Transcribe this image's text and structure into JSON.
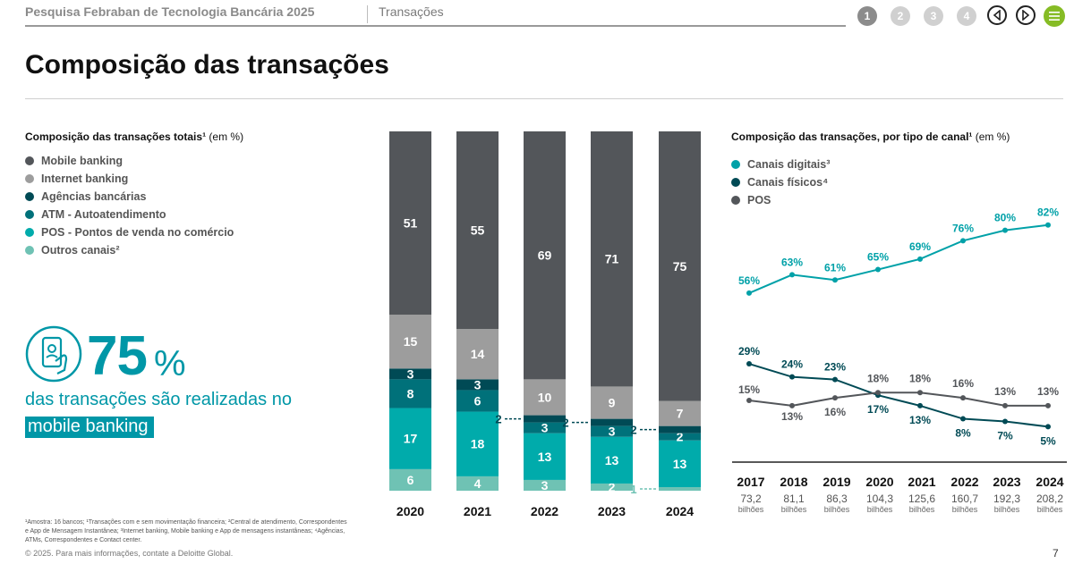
{
  "header": {
    "report_title": "Pesquisa Febraban de Tecnologia Bancária 2025",
    "section": "Transações",
    "pages": [
      "1",
      "2",
      "3",
      "4"
    ],
    "active_page": "1"
  },
  "page_title": "Composição das transações",
  "left_chart": {
    "title_bold": "Composição das transações totais¹",
    "title_unit": " (em %)",
    "legend": [
      {
        "label": "Mobile banking",
        "color": "#53565a"
      },
      {
        "label": "Internet banking",
        "color": "#9d9d9d"
      },
      {
        "label": "Agências bancárias",
        "color": "#004a55"
      },
      {
        "label": "ATM - Autoatendimento",
        "color": "#00717a"
      },
      {
        "label": "POS - Pontos de venda no comércio",
        "color": "#00abab"
      },
      {
        "label": "Outros canais²",
        "color": "#6fc2b4"
      }
    ]
  },
  "highlight": {
    "number": "75",
    "percent": "%",
    "line1": "das transações são realizadas no",
    "line2": "mobile banking"
  },
  "footnote": "¹Amostra: 16 bancos; ¹Transações com e sem movimentação financeira; ²Central de atendimento, Correspondentes e App de Mensagem Instantânea; ³Internet banking, Mobile banking e App de mensagens instantâneas; ⁴Agências, ATMs, Correspondentes e Contact center.",
  "copyright": "© 2025. Para mais informações, contate a Deloitte Global.",
  "page_number": "7",
  "right_chart": {
    "title_bold": "Composição das transações, por tipo de canal¹",
    "title_unit": " (em %)",
    "legend": [
      {
        "label": "Canais digitais³",
        "color": "#00a1a8"
      },
      {
        "label": "Canais físicos⁴",
        "color": "#004a55"
      },
      {
        "label": "POS",
        "color": "#53565a"
      }
    ]
  },
  "chart_data": [
    {
      "type": "bar",
      "stacked": true,
      "categories": [
        "2020",
        "2021",
        "2022",
        "2023",
        "2024"
      ],
      "series": [
        {
          "name": "Outros canais²",
          "color": "#6fc2b4",
          "values": [
            6,
            4,
            3,
            2,
            1
          ]
        },
        {
          "name": "POS - Pontos de venda no comércio",
          "color": "#00abab",
          "values": [
            17,
            18,
            13,
            13,
            13
          ]
        },
        {
          "name": "ATM - Autoatendimento",
          "color": "#00717a",
          "values": [
            8,
            6,
            3,
            3,
            2
          ]
        },
        {
          "name": "Agências bancárias",
          "color": "#004a55",
          "values": [
            3,
            3,
            2,
            2,
            2
          ]
        },
        {
          "name": "Internet banking",
          "color": "#9d9d9d",
          "values": [
            15,
            14,
            10,
            9,
            7
          ]
        },
        {
          "name": "Mobile banking",
          "color": "#53565a",
          "values": [
            51,
            55,
            69,
            71,
            75
          ]
        }
      ],
      "ylim": [
        0,
        100
      ],
      "legend": "left"
    },
    {
      "type": "line",
      "x": [
        "2017",
        "2018",
        "2019",
        "2020",
        "2021",
        "2022",
        "2023",
        "2024"
      ],
      "series": [
        {
          "name": "Canais digitais³",
          "color": "#00a1a8",
          "values": [
            56,
            63,
            61,
            65,
            69,
            76,
            80,
            82
          ],
          "labels": [
            "56%",
            "63%",
            "61%",
            "65%",
            "69%",
            "76%",
            "80%",
            "82%"
          ]
        },
        {
          "name": "Canais físicos⁴",
          "color": "#004a55",
          "values": [
            29,
            24,
            23,
            17,
            13,
            8,
            7,
            5
          ],
          "labels": [
            "29%",
            "24%",
            "23%",
            "17%",
            "13%",
            "8%",
            "7%",
            "5%"
          ]
        },
        {
          "name": "POS",
          "color": "#53565a",
          "values": [
            15,
            13,
            16,
            18,
            18,
            16,
            13,
            13
          ],
          "labels": [
            "15%",
            "13%",
            "16%",
            "18%",
            "18%",
            "16%",
            "13%",
            "13%"
          ]
        }
      ],
      "totals": [
        "73,2",
        "81,1",
        "86,3",
        "104,3",
        "125,6",
        "160,7",
        "192,3",
        "208,2"
      ],
      "totals_unit": "bilhões",
      "legend": "top-left"
    }
  ]
}
